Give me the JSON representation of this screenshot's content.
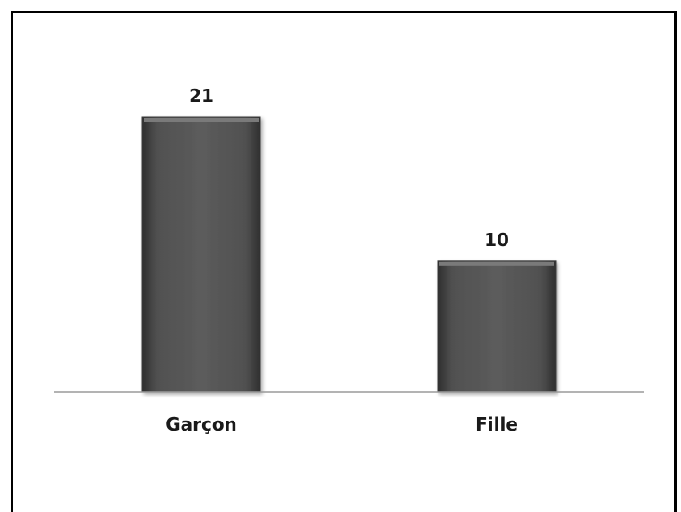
{
  "chart_data": {
    "type": "bar",
    "categories": [
      "Garçon",
      "Fille"
    ],
    "values": [
      21,
      10
    ],
    "title": "",
    "xlabel": "",
    "ylabel": "",
    "ylim": [
      0,
      21
    ],
    "grid": false,
    "data_labels": [
      "21",
      "10"
    ],
    "bar_color": "#555555"
  }
}
